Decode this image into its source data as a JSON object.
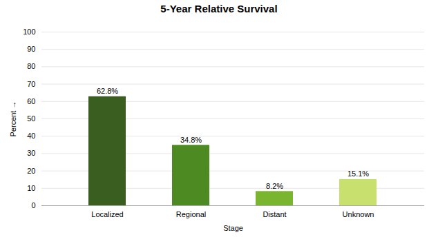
{
  "chart_data": {
    "type": "bar",
    "title": "5-Year Relative Survival",
    "xlabel": "Stage",
    "ylabel": "Percent",
    "categories": [
      "Localized",
      "Regional",
      "Distant",
      "Unknown"
    ],
    "values": [
      62.8,
      34.8,
      8.2,
      15.1
    ],
    "value_labels": [
      "62.8%",
      "34.8%",
      "8.2%",
      "15.1%"
    ],
    "colors": [
      "#3a5e1f",
      "#4e8a22",
      "#7ab530",
      "#c8e06e"
    ],
    "ylim": [
      0,
      100
    ],
    "yticks": [
      0,
      10,
      20,
      30,
      40,
      50,
      60,
      70,
      80,
      90,
      100
    ],
    "grid": true,
    "data_labels": true
  }
}
